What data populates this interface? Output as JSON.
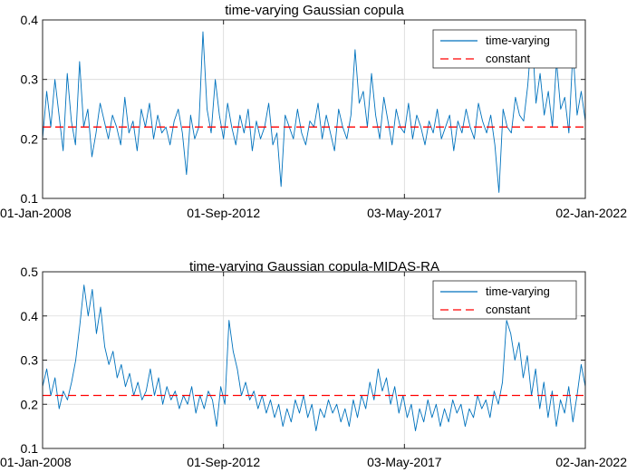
{
  "chart_data": [
    {
      "type": "line",
      "title": "time-varying Gaussian copula",
      "xlabel": "",
      "ylabel": "",
      "x_tick_labels": [
        "01-Jan-2008",
        "01-Sep-2012",
        "03-May-2017",
        "02-Jan-2022"
      ],
      "y_ticks": [
        0.1,
        0.2,
        0.3,
        0.4
      ],
      "y_tick_labels": [
        "0.1",
        "0.2",
        "0.3",
        "0.4"
      ],
      "ylim": [
        0.1,
        0.4
      ],
      "xlim": [
        "2008-01-01",
        "2022-01-02"
      ],
      "grid": true,
      "legend_position": "top-right",
      "series": [
        {
          "name": "time-varying",
          "color": "#0072BD",
          "style": "solid",
          "x_start": "2008-01-01",
          "x_end": "2022-01-02",
          "values": [
            0.2,
            0.28,
            0.22,
            0.3,
            0.24,
            0.18,
            0.31,
            0.23,
            0.19,
            0.33,
            0.22,
            0.25,
            0.17,
            0.21,
            0.26,
            0.23,
            0.2,
            0.24,
            0.22,
            0.19,
            0.27,
            0.21,
            0.23,
            0.18,
            0.25,
            0.22,
            0.26,
            0.2,
            0.24,
            0.21,
            0.22,
            0.19,
            0.23,
            0.25,
            0.21,
            0.14,
            0.24,
            0.2,
            0.22,
            0.38,
            0.25,
            0.21,
            0.3,
            0.24,
            0.2,
            0.26,
            0.22,
            0.19,
            0.24,
            0.21,
            0.25,
            0.18,
            0.23,
            0.2,
            0.22,
            0.26,
            0.19,
            0.21,
            0.12,
            0.24,
            0.22,
            0.2,
            0.25,
            0.21,
            0.19,
            0.23,
            0.22,
            0.26,
            0.2,
            0.24,
            0.21,
            0.18,
            0.25,
            0.22,
            0.2,
            0.24,
            0.35,
            0.26,
            0.28,
            0.22,
            0.31,
            0.24,
            0.2,
            0.27,
            0.23,
            0.19,
            0.25,
            0.22,
            0.21,
            0.26,
            0.2,
            0.24,
            0.22,
            0.19,
            0.23,
            0.21,
            0.25,
            0.2,
            0.22,
            0.24,
            0.18,
            0.23,
            0.21,
            0.25,
            0.22,
            0.2,
            0.26,
            0.23,
            0.21,
            0.24,
            0.19,
            0.11,
            0.25,
            0.22,
            0.21,
            0.27,
            0.24,
            0.23,
            0.29,
            0.38,
            0.26,
            0.31,
            0.24,
            0.28,
            0.22,
            0.33,
            0.25,
            0.27,
            0.21,
            0.35,
            0.24,
            0.28,
            0.23
          ]
        },
        {
          "name": "constant",
          "color": "#FF0000",
          "style": "dashed",
          "values": [
            0.22,
            0.22
          ]
        }
      ]
    },
    {
      "type": "line",
      "title": "time-varying Gaussian copula-MIDAS-RA",
      "xlabel": "",
      "ylabel": "",
      "x_tick_labels": [
        "01-Jan-2008",
        "01-Sep-2012",
        "03-May-2017",
        "02-Jan-2022"
      ],
      "y_ticks": [
        0.1,
        0.2,
        0.3,
        0.4,
        0.5
      ],
      "y_tick_labels": [
        "0.1",
        "0.2",
        "0.3",
        "0.4",
        "0.5"
      ],
      "ylim": [
        0.1,
        0.5
      ],
      "xlim": [
        "2008-01-01",
        "2022-01-02"
      ],
      "grid": true,
      "legend_position": "top-right",
      "series": [
        {
          "name": "time-varying",
          "color": "#0072BD",
          "style": "solid",
          "x_start": "2008-01-01",
          "x_end": "2022-01-02",
          "values": [
            0.24,
            0.28,
            0.22,
            0.26,
            0.19,
            0.23,
            0.21,
            0.25,
            0.3,
            0.38,
            0.47,
            0.4,
            0.46,
            0.36,
            0.42,
            0.33,
            0.29,
            0.32,
            0.26,
            0.29,
            0.24,
            0.27,
            0.22,
            0.25,
            0.21,
            0.23,
            0.28,
            0.22,
            0.26,
            0.2,
            0.24,
            0.21,
            0.23,
            0.19,
            0.22,
            0.2,
            0.24,
            0.18,
            0.22,
            0.19,
            0.23,
            0.21,
            0.15,
            0.24,
            0.2,
            0.39,
            0.32,
            0.28,
            0.22,
            0.25,
            0.21,
            0.23,
            0.19,
            0.22,
            0.18,
            0.21,
            0.17,
            0.2,
            0.15,
            0.19,
            0.16,
            0.21,
            0.18,
            0.22,
            0.17,
            0.2,
            0.14,
            0.19,
            0.17,
            0.21,
            0.18,
            0.2,
            0.16,
            0.19,
            0.15,
            0.21,
            0.17,
            0.22,
            0.19,
            0.25,
            0.21,
            0.28,
            0.23,
            0.26,
            0.2,
            0.24,
            0.18,
            0.22,
            0.17,
            0.2,
            0.14,
            0.19,
            0.16,
            0.21,
            0.17,
            0.2,
            0.15,
            0.19,
            0.16,
            0.21,
            0.18,
            0.2,
            0.15,
            0.19,
            0.17,
            0.22,
            0.19,
            0.21,
            0.17,
            0.23,
            0.2,
            0.25,
            0.39,
            0.36,
            0.3,
            0.34,
            0.26,
            0.31,
            0.22,
            0.28,
            0.19,
            0.25,
            0.17,
            0.23,
            0.15,
            0.21,
            0.18,
            0.24,
            0.16,
            0.22,
            0.29,
            0.24
          ]
        },
        {
          "name": "constant",
          "color": "#FF0000",
          "style": "dashed",
          "values": [
            0.22,
            0.22
          ]
        }
      ]
    }
  ]
}
